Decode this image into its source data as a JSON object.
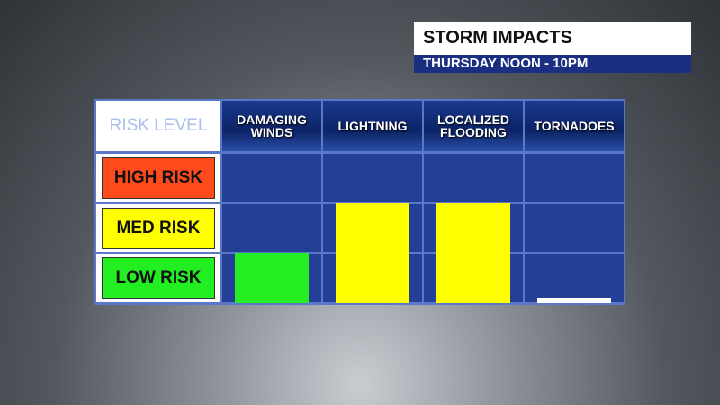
{
  "chart_data": {
    "type": "bar",
    "title": "STORM IMPACTS",
    "subtitle": "THURSDAY NOON - 10PM",
    "y_label": "RISK LEVEL",
    "categories": [
      "DAMAGING WINDS",
      "LIGHTNING",
      "LOCALIZED FLOODING",
      "TORNADOES"
    ],
    "values": [
      1,
      2,
      2,
      0.1
    ],
    "colors": [
      "#22ee22",
      "#ffff00",
      "#ffff00",
      "#ffffff"
    ],
    "ylim": [
      0,
      3
    ],
    "yticks": [
      {
        "value": 0.5,
        "label": "LOW RISK"
      },
      {
        "value": 1.5,
        "label": "MED RISK"
      },
      {
        "value": 2.5,
        "label": "HIGH RISK"
      }
    ],
    "ytick_colors": [
      "#22ee22",
      "#ffff00",
      "#ff4a1c"
    ]
  }
}
